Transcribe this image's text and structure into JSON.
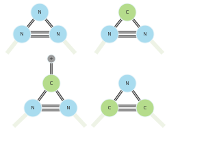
{
  "molecules": [
    {
      "atoms": [
        "N",
        "N",
        "N"
      ]
    },
    {
      "atoms": [
        "C",
        "N",
        "N"
      ]
    },
    {
      "atoms": [
        "+",
        "C",
        "N",
        "N"
      ]
    },
    {
      "atoms": [
        "N",
        "C",
        "C"
      ]
    }
  ]
}
